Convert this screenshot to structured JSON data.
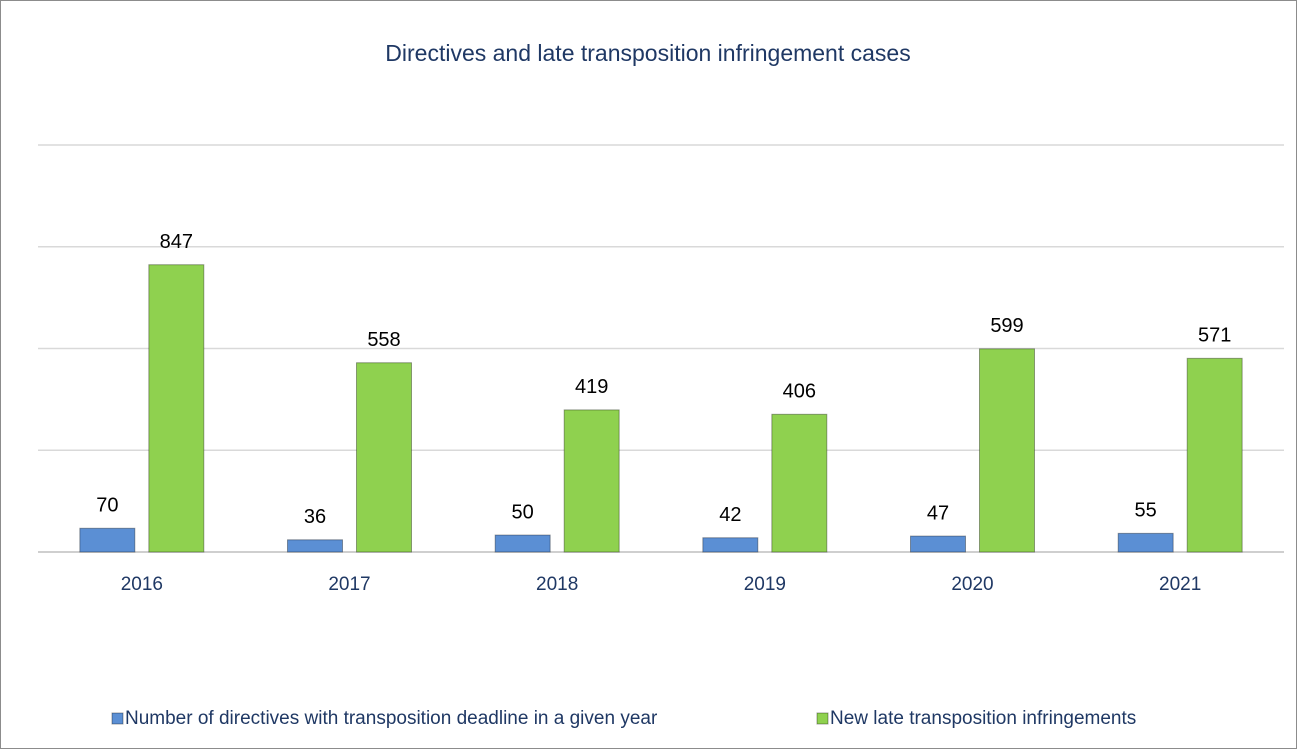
{
  "chart_data": {
    "type": "bar",
    "title": "Directives and late transposition infringement cases",
    "categories": [
      "2016",
      "2017",
      "2018",
      "2019",
      "2020",
      "2021"
    ],
    "series": [
      {
        "name": "Number of directives with transposition deadline in a given year",
        "color": "#5b8fd4",
        "values": [
          70,
          36,
          50,
          42,
          47,
          55
        ]
      },
      {
        "name": "New late transposition infringements",
        "color": "#8fd14f",
        "values": [
          847,
          558,
          419,
          406,
          599,
          571
        ]
      }
    ],
    "ylim": [
      0,
      1200
    ],
    "yticks": [
      0,
      300,
      600,
      900,
      1200
    ],
    "grid": true,
    "legend": "bottom"
  }
}
